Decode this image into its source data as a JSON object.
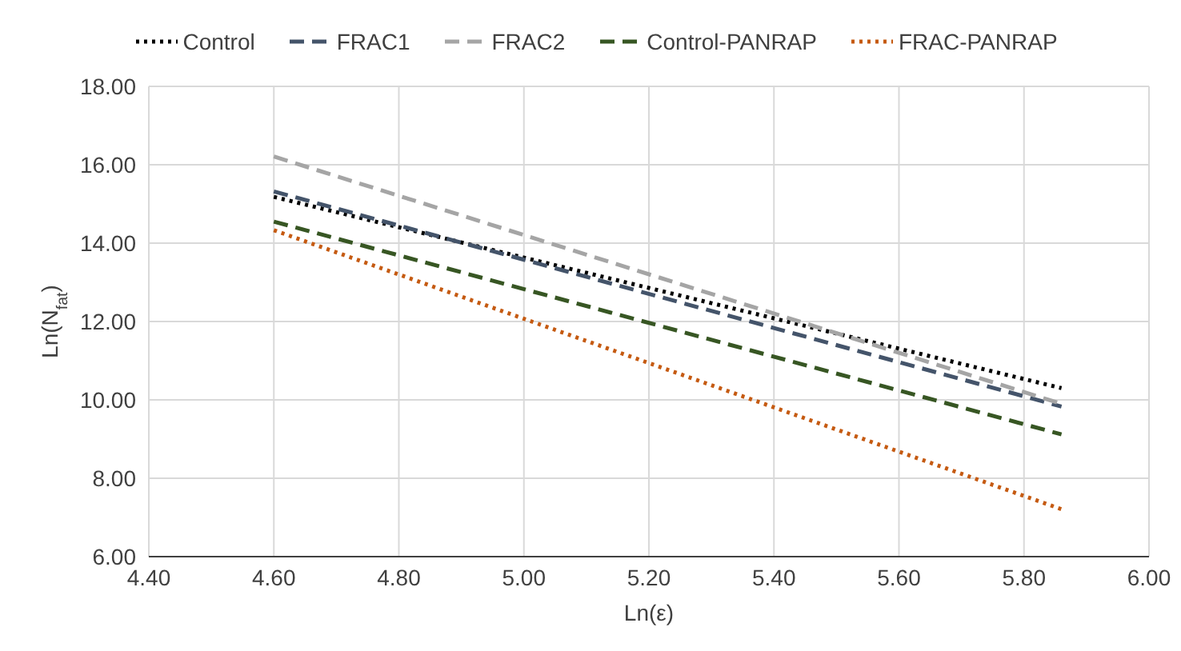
{
  "chart_data": {
    "type": "line",
    "xlabel": "Ln(ε)",
    "ylabel": "Ln(N$_{fat}$)",
    "x": [
      4.6,
      5.86
    ],
    "series": [
      {
        "name": "Control",
        "color": "#000000",
        "line_style": "dotted",
        "values": [
          15.18,
          10.3
        ]
      },
      {
        "name": "FRAC1",
        "color": "#44546a",
        "line_style": "dashed",
        "values": [
          15.32,
          9.83
        ]
      },
      {
        "name": "FRAC2",
        "color": "#a5a5a5",
        "line_style": "dashed",
        "values": [
          16.21,
          9.9
        ]
      },
      {
        "name": "Control-PANRAP",
        "color": "#375623",
        "line_style": "dashed",
        "values": [
          14.55,
          9.12
        ]
      },
      {
        "name": "FRAC-PANRAP",
        "color": "#c55a11",
        "line_style": "dotted",
        "values": [
          14.33,
          7.21
        ]
      }
    ],
    "xlim": [
      4.4,
      6.0
    ],
    "xticks": [
      {
        "value": 4.4,
        "label": "4.40"
      },
      {
        "value": 4.6,
        "label": "4.60"
      },
      {
        "value": 4.8,
        "label": "4.80"
      },
      {
        "value": 5.0,
        "label": "5.00"
      },
      {
        "value": 5.2,
        "label": "5.20"
      },
      {
        "value": 5.4,
        "label": "5.40"
      },
      {
        "value": 5.6,
        "label": "5.60"
      },
      {
        "value": 5.8,
        "label": "5.80"
      },
      {
        "value": 6.0,
        "label": "6.00"
      }
    ],
    "ylim": [
      6,
      18
    ],
    "yticks": [
      {
        "value": 6,
        "label": "6.00"
      },
      {
        "value": 8,
        "label": "8.00"
      },
      {
        "value": 10,
        "label": "10.00"
      },
      {
        "value": 12,
        "label": "12.00"
      },
      {
        "value": 14,
        "label": "14.00"
      },
      {
        "value": 16,
        "label": "16.00"
      },
      {
        "value": 18,
        "label": "18.00"
      }
    ],
    "grid": true,
    "legend": "top",
    "marker": "none"
  }
}
